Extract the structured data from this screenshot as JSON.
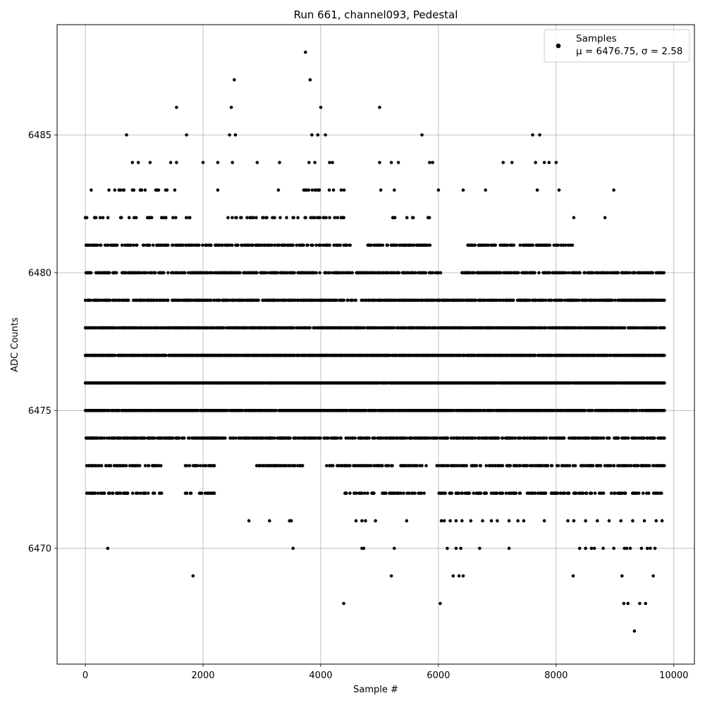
{
  "chart_data": {
    "type": "scatter",
    "title": "Run 661, channel093, Pedestal",
    "xlabel": "Sample #",
    "ylabel": "ADC Counts",
    "xlim": [
      -480,
      10350
    ],
    "ylim": [
      6465.8,
      6489.0
    ],
    "xticks": [
      0,
      2000,
      4000,
      6000,
      8000,
      10000
    ],
    "yticks": [
      6470,
      6475,
      6480,
      6485
    ],
    "xtick_labels": [
      "0",
      "2000",
      "4000",
      "6000",
      "8000",
      "10000"
    ],
    "ytick_labels": [
      "6470",
      "6475",
      "6480",
      "6485"
    ],
    "grid": true,
    "legend_position": "top-right",
    "series": [
      {
        "name": "Samples",
        "legend_stats": "μ = 6476.75, σ = 2.58",
        "mean": 6476.75,
        "sigma": 2.58,
        "marker_color": "#000000",
        "sample_count": 10000,
        "bands": [
          {
            "y": 6472,
            "ranges": [
              [
                0,
                1300
              ],
              [
                1700,
                2200
              ],
              [
                4400,
                5800
              ],
              [
                5950,
                9850
              ]
            ],
            "density": 0.35
          },
          {
            "y": 6473,
            "ranges": [
              [
                0,
                1300
              ],
              [
                1700,
                2200
              ],
              [
                2900,
                3700
              ],
              [
                4100,
                5800
              ],
              [
                5950,
                9850
              ]
            ],
            "density": 0.45
          },
          {
            "y": 6474,
            "ranges": [
              [
                0,
                9850
              ]
            ],
            "density": 0.6
          },
          {
            "y": 6475,
            "ranges": [
              [
                0,
                9850
              ]
            ],
            "density": 0.8
          },
          {
            "y": 6476,
            "ranges": [
              [
                0,
                9850
              ]
            ],
            "density": 0.9
          },
          {
            "y": 6477,
            "ranges": [
              [
                0,
                9850
              ]
            ],
            "density": 0.85
          },
          {
            "y": 6478,
            "ranges": [
              [
                0,
                9850
              ]
            ],
            "density": 0.75
          },
          {
            "y": 6479,
            "ranges": [
              [
                0,
                9850
              ]
            ],
            "density": 0.65
          },
          {
            "y": 6480,
            "ranges": [
              [
                0,
                6050
              ],
              [
                6400,
                9850
              ]
            ],
            "density": 0.55
          },
          {
            "y": 6481,
            "ranges": [
              [
                0,
                4500
              ],
              [
                4800,
                5900
              ],
              [
                6500,
                8300
              ]
            ],
            "density": 0.5
          },
          {
            "y": 6482,
            "ranges": [
              [
                0,
                1800
              ],
              [
                2400,
                4400
              ],
              [
                5200,
                5900
              ]
            ],
            "density": 0.2
          },
          {
            "y": 6483,
            "ranges": [
              [
                500,
                1800
              ],
              [
                3700,
                4400
              ]
            ],
            "density": 0.12
          }
        ],
        "points": [
          [
            0,
            6482
          ],
          [
            100,
            6483
          ],
          [
            400,
            6483
          ],
          [
            600,
            6482
          ],
          [
            700,
            6485
          ],
          [
            800,
            6484
          ],
          [
            900,
            6484
          ],
          [
            1100,
            6484
          ],
          [
            1450,
            6484
          ],
          [
            1550,
            6484
          ],
          [
            1550,
            6486
          ],
          [
            1720,
            6485
          ],
          [
            2000,
            6484
          ],
          [
            2250,
            6484
          ],
          [
            2250,
            6483
          ],
          [
            2450,
            6485
          ],
          [
            2480,
            6486
          ],
          [
            2500,
            6484
          ],
          [
            2530,
            6487
          ],
          [
            2550,
            6485
          ],
          [
            2920,
            6484
          ],
          [
            3300,
            6484
          ],
          [
            3280,
            6483
          ],
          [
            3740,
            6488
          ],
          [
            3820,
            6487
          ],
          [
            3850,
            6485
          ],
          [
            3950,
            6485
          ],
          [
            4000,
            6486
          ],
          [
            4080,
            6485
          ],
          [
            3800,
            6484
          ],
          [
            3900,
            6484
          ],
          [
            4150,
            6484
          ],
          [
            4200,
            6484
          ],
          [
            5000,
            6486
          ],
          [
            5000,
            6484
          ],
          [
            5200,
            6484
          ],
          [
            5320,
            6484
          ],
          [
            5020,
            6483
          ],
          [
            5250,
            6483
          ],
          [
            5720,
            6485
          ],
          [
            5850,
            6484
          ],
          [
            5900,
            6484
          ],
          [
            6000,
            6483
          ],
          [
            6420,
            6483
          ],
          [
            6800,
            6483
          ],
          [
            7100,
            6484
          ],
          [
            7250,
            6484
          ],
          [
            7600,
            6485
          ],
          [
            7720,
            6485
          ],
          [
            7650,
            6484
          ],
          [
            7800,
            6484
          ],
          [
            7880,
            6484
          ],
          [
            8000,
            6484
          ],
          [
            8050,
            6483
          ],
          [
            7680,
            6483
          ],
          [
            8980,
            6483
          ],
          [
            8830,
            6482
          ],
          [
            8300,
            6482
          ],
          [
            380,
            6470
          ],
          [
            1830,
            6469
          ],
          [
            3530,
            6470
          ],
          [
            4390,
            6468
          ],
          [
            4700,
            6470
          ],
          [
            4730,
            6470
          ],
          [
            5200,
            6469
          ],
          [
            5250,
            6470
          ],
          [
            6030,
            6468
          ],
          [
            6150,
            6470
          ],
          [
            6250,
            6469
          ],
          [
            6300,
            6470
          ],
          [
            6350,
            6469
          ],
          [
            6380,
            6470
          ],
          [
            6420,
            6469
          ],
          [
            6700,
            6470
          ],
          [
            7200,
            6470
          ],
          [
            8290,
            6469
          ],
          [
            8400,
            6470
          ],
          [
            8500,
            6470
          ],
          [
            8600,
            6470
          ],
          [
            8650,
            6470
          ],
          [
            8800,
            6470
          ],
          [
            8980,
            6470
          ],
          [
            9120,
            6469
          ],
          [
            9150,
            6468
          ],
          [
            9160,
            6470
          ],
          [
            9200,
            6470
          ],
          [
            9220,
            6468
          ],
          [
            9260,
            6470
          ],
          [
            9330,
            6467
          ],
          [
            9420,
            6468
          ],
          [
            9450,
            6470
          ],
          [
            9520,
            6468
          ],
          [
            9550,
            6470
          ],
          [
            9600,
            6470
          ],
          [
            9650,
            6469
          ],
          [
            9680,
            6470
          ],
          [
            2780,
            6471
          ],
          [
            3130,
            6471
          ],
          [
            3470,
            6471
          ],
          [
            3500,
            6471
          ],
          [
            4600,
            6471
          ],
          [
            4700,
            6471
          ],
          [
            4760,
            6471
          ],
          [
            4930,
            6471
          ],
          [
            5460,
            6471
          ],
          [
            6050,
            6471
          ],
          [
            6100,
            6471
          ],
          [
            6200,
            6471
          ],
          [
            6300,
            6471
          ],
          [
            6400,
            6471
          ],
          [
            6550,
            6471
          ],
          [
            6750,
            6471
          ],
          [
            6900,
            6471
          ],
          [
            7000,
            6471
          ],
          [
            7200,
            6471
          ],
          [
            7350,
            6471
          ],
          [
            7450,
            6471
          ],
          [
            7800,
            6471
          ],
          [
            8200,
            6471
          ],
          [
            8300,
            6471
          ],
          [
            8500,
            6471
          ],
          [
            8700,
            6471
          ],
          [
            8900,
            6471
          ],
          [
            9100,
            6471
          ],
          [
            9300,
            6471
          ],
          [
            9500,
            6471
          ],
          [
            9700,
            6471
          ],
          [
            9800,
            6471
          ]
        ]
      }
    ]
  }
}
